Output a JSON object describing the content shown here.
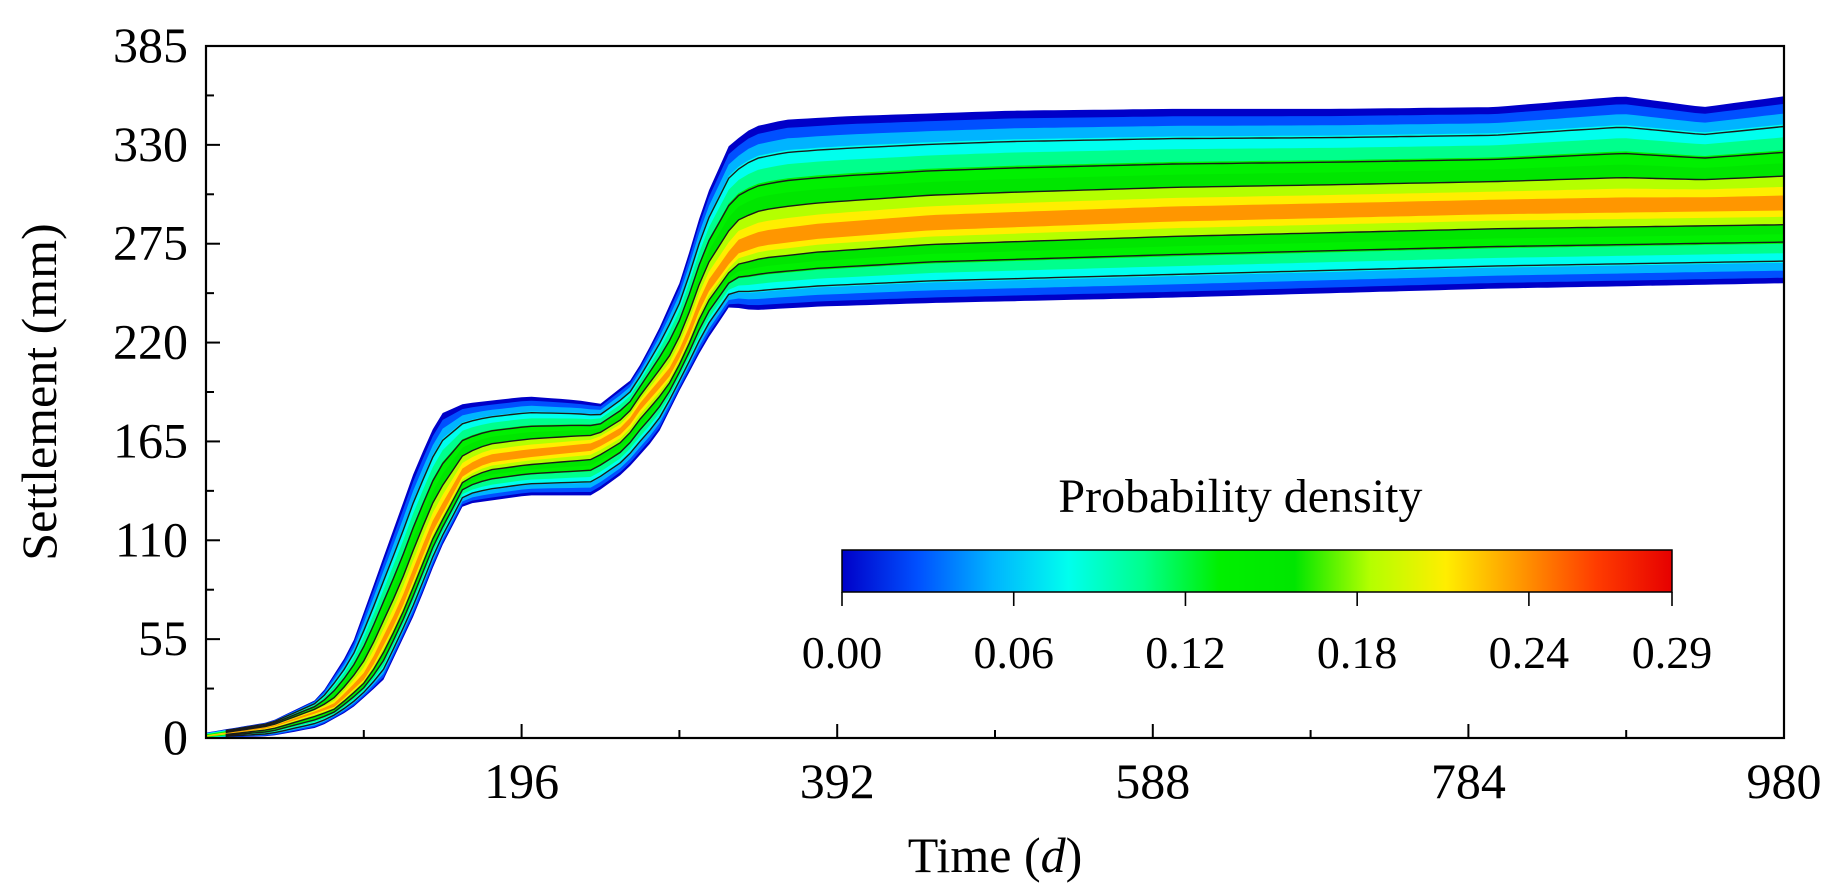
{
  "chart_data": {
    "type": "heatmap",
    "title": "",
    "xlabel_prefix": "Time (",
    "xlabel_var": "d",
    "xlabel_suffix": ")",
    "ylabel": "Settlement (mm)",
    "xlim": [
      0,
      980
    ],
    "ylim": [
      0,
      385
    ],
    "x_ticks": [
      196,
      392,
      588,
      784,
      980
    ],
    "y_ticks": [
      0,
      55,
      110,
      165,
      220,
      275,
      330,
      385
    ],
    "colorbar": {
      "title": "Probability density",
      "range": [
        0.0,
        0.29
      ],
      "tick_values": [
        0.0,
        0.06,
        0.12,
        0.18,
        0.24,
        0.29
      ],
      "tick_labels": [
        "0.00",
        "0.06",
        "0.12",
        "0.18",
        "0.24",
        "0.29"
      ],
      "colors": [
        "#0000c8",
        "#0050ff",
        "#00b4ff",
        "#00ffee",
        "#00ff8c",
        "#00f000",
        "#00e600",
        "#b4ff00",
        "#ffee00",
        "#ff9600",
        "#ff3c00",
        "#e60000"
      ],
      "legend_position": "lower-right"
    },
    "mean_curve": {
      "t": [
        0,
        40,
        80,
        100,
        120,
        140,
        160,
        175,
        200,
        240,
        260,
        270,
        290,
        300,
        310,
        330,
        345,
        380,
        450,
        600,
        800,
        980
      ],
      "settlement": [
        1,
        6,
        18,
        35,
        70,
        115,
        148,
        155,
        158,
        162,
        172,
        185,
        205,
        225,
        248,
        272,
        277,
        281,
        286,
        291,
        295,
        297
      ]
    },
    "band_upper": {
      "t": [
        0,
        40,
        70,
        90,
        110,
        130,
        145,
        160,
        200,
        230,
        245,
        265,
        280,
        295,
        310,
        325,
        340,
        360,
        400,
        500,
        600,
        700,
        800,
        880,
        930,
        980
      ],
      "settlement": [
        3,
        9,
        22,
        50,
        100,
        150,
        180,
        186,
        190,
        188,
        186,
        200,
        225,
        255,
        300,
        330,
        340,
        344,
        346,
        349,
        350,
        350,
        351,
        357,
        351,
        357
      ]
    },
    "band_lower": {
      "t": [
        0,
        40,
        70,
        90,
        110,
        130,
        145,
        160,
        200,
        240,
        260,
        280,
        295,
        310,
        325,
        340,
        380,
        450,
        600,
        800,
        980
      ],
      "settlement": [
        0,
        1,
        6,
        16,
        32,
        70,
        104,
        130,
        135,
        135,
        148,
        168,
        195,
        220,
        240,
        238,
        240,
        242,
        245,
        250,
        253
      ]
    },
    "peak_density": 0.25
  }
}
